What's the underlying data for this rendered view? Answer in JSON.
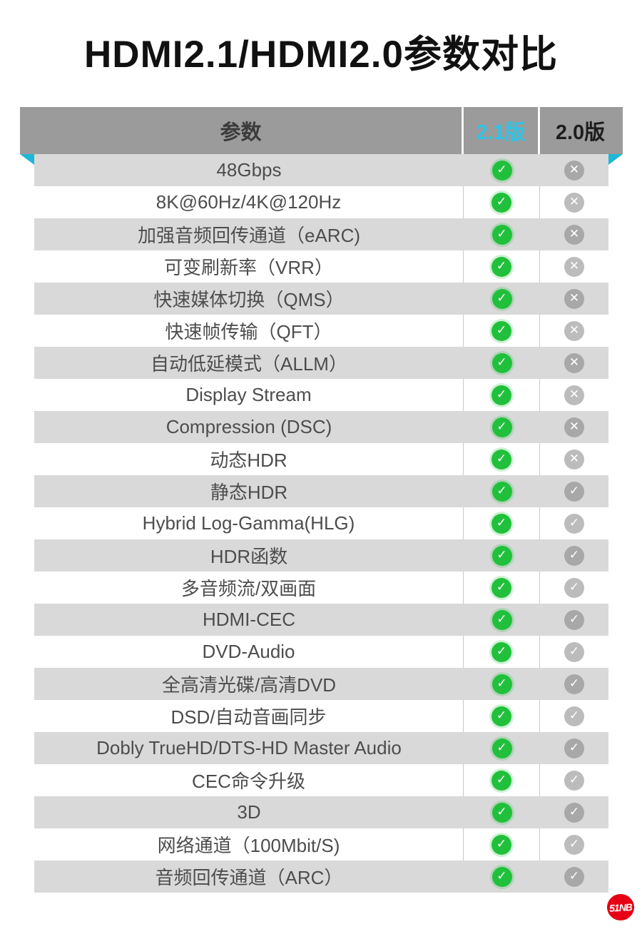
{
  "title": "HDMI2.1/HDMI2.0参数对比",
  "chart_data": {
    "type": "table",
    "title": "HDMI2.1/HDMI2.0参数对比",
    "columns": [
      "参数",
      "2.1版",
      "2.0版"
    ],
    "rows": [
      {
        "label": "48Gbps",
        "v21": "check",
        "v20": "cross"
      },
      {
        "label": "8K@60Hz/4K@120Hz",
        "v21": "check",
        "v20": "cross"
      },
      {
        "label": "加强音频回传通道（eARC)",
        "v21": "check",
        "v20": "cross"
      },
      {
        "label": "可变刷新率（VRR）",
        "v21": "check",
        "v20": "cross"
      },
      {
        "label": "快速媒体切换（QMS）",
        "v21": "check",
        "v20": "cross"
      },
      {
        "label": "快速帧传输（QFT）",
        "v21": "check",
        "v20": "cross"
      },
      {
        "label": "自动低延模式（ALLM）",
        "v21": "check",
        "v20": "cross"
      },
      {
        "label": "Display Stream",
        "v21": "check",
        "v20": "cross"
      },
      {
        "label": "Compression (DSC)",
        "v21": "check",
        "v20": "cross"
      },
      {
        "label": "动态HDR",
        "v21": "check",
        "v20": "cross"
      },
      {
        "label": "静态HDR",
        "v21": "check",
        "v20": "check"
      },
      {
        "label": "Hybrid Log-Gamma(HLG)",
        "v21": "check",
        "v20": "check"
      },
      {
        "label": "HDR函数",
        "v21": "check",
        "v20": "check"
      },
      {
        "label": "多音频流/双画面",
        "v21": "check",
        "v20": "check"
      },
      {
        "label": "HDMI-CEC",
        "v21": "check",
        "v20": "check"
      },
      {
        "label": "DVD-Audio",
        "v21": "check",
        "v20": "check"
      },
      {
        "label": "全高清光碟/高清DVD",
        "v21": "check",
        "v20": "check"
      },
      {
        "label": "DSD/自动音画同步",
        "v21": "check",
        "v20": "check"
      },
      {
        "label": "Dobly TrueHD/DTS-HD Master Audio",
        "v21": "check",
        "v20": "check"
      },
      {
        "label": "CEC命令升级",
        "v21": "check",
        "v20": "check"
      },
      {
        "label": "3D",
        "v21": "check",
        "v20": "check"
      },
      {
        "label": "网络通道（100Mbit/S)",
        "v21": "check",
        "v20": "check"
      },
      {
        "label": "音频回传通道（ARC）",
        "v21": "check",
        "v20": "check"
      }
    ]
  },
  "icons": {
    "check": "✓",
    "cross": "✕"
  },
  "logo": {
    "text": "51NB"
  },
  "colors": {
    "accent_cyan": "#2fc3e6",
    "fold_cyan": "#1cb8d8",
    "check_green": "#21c03c",
    "icon_gray": "#b5b5b5",
    "header_gray": "#9b9b9b",
    "row_gray": "#d9d9d9",
    "logo_red": "#e60013"
  }
}
